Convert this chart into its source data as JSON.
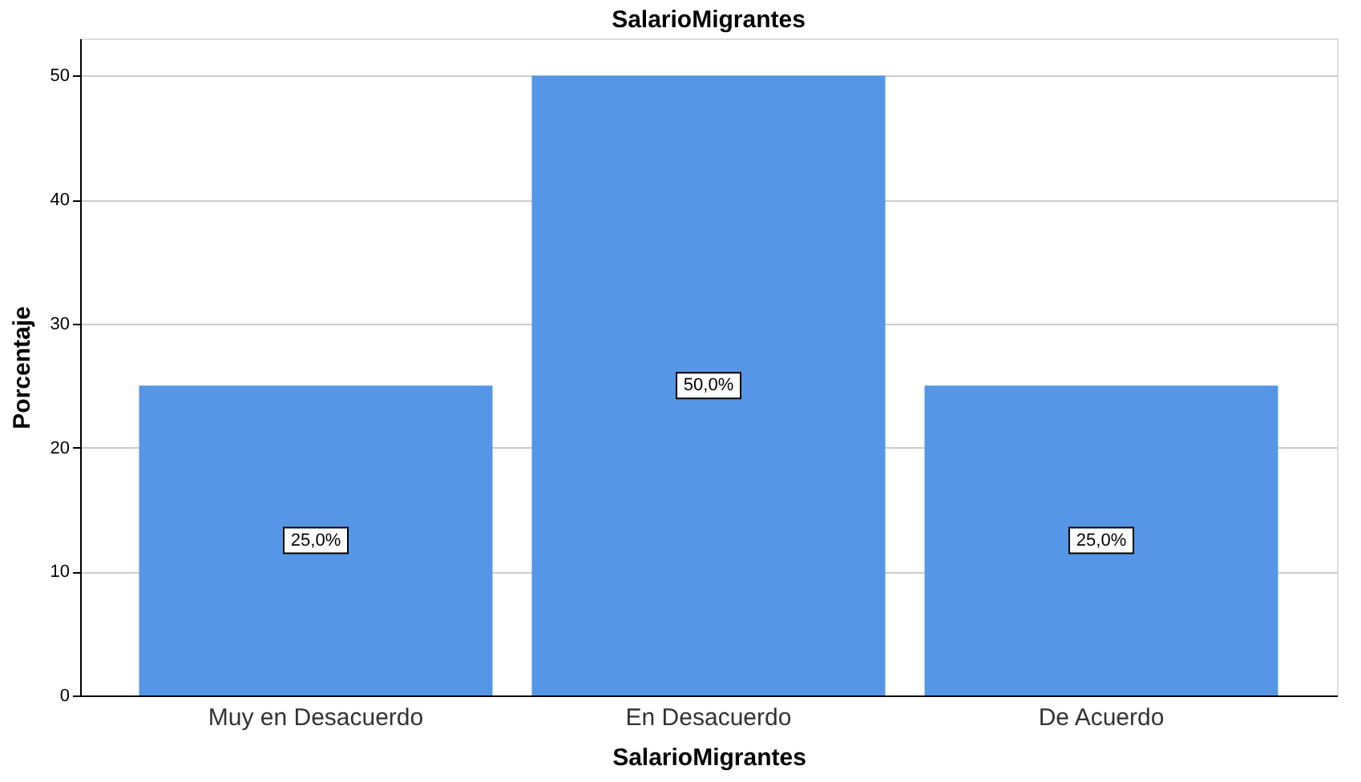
{
  "chart_data": {
    "type": "bar",
    "title": "SalarioMigrantes",
    "xlabel": "SalarioMigrantes",
    "ylabel": "Porcentaje",
    "categories": [
      "Muy en Desacuerdo",
      "En Desacuerdo",
      "De Acuerdo"
    ],
    "values": [
      25,
      50,
      25
    ],
    "value_labels": [
      "25,0%",
      "50,0%",
      "25,0%"
    ],
    "color": "#5596e6",
    "ylim": [
      0,
      53
    ],
    "yticks": [
      0,
      10,
      20,
      30,
      40,
      50
    ],
    "grid": "y"
  }
}
